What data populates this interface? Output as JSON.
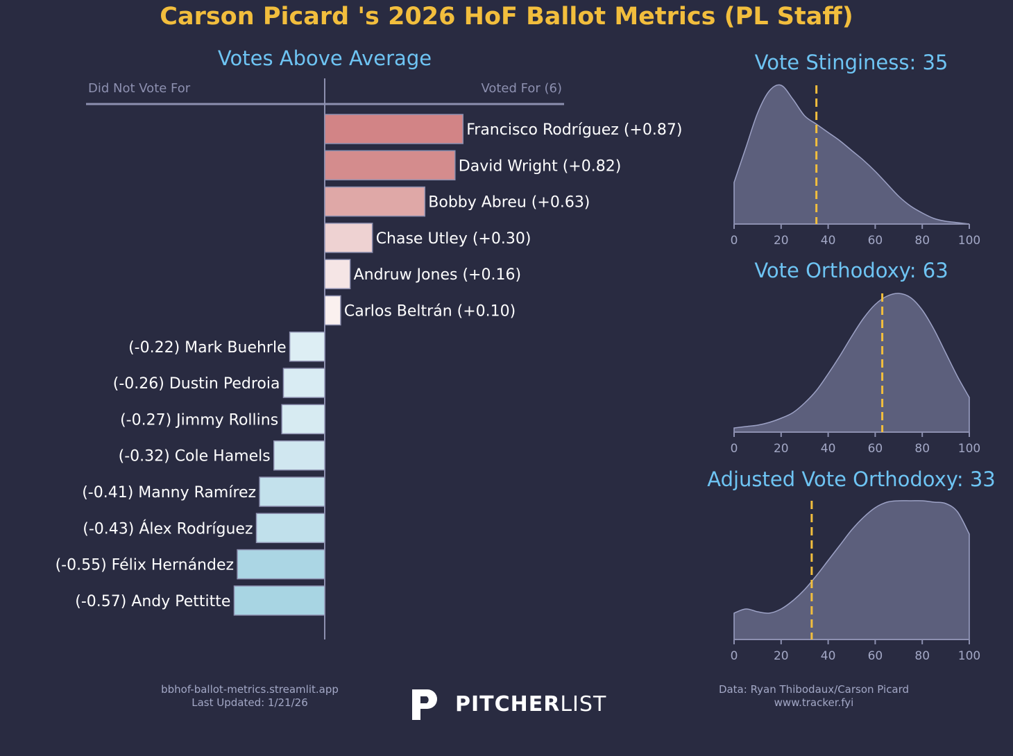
{
  "title": "Carson Picard 's 2026 HoF Ballot Metrics (PL Staff)",
  "colors": {
    "background": "#292b41",
    "title": "#f2be3d",
    "subtitle": "#6ec4f3",
    "axis": "#8d90b0",
    "density_fill": "#5c5f7c",
    "density_stroke": "#9da2c6",
    "marker": "#f2be3d"
  },
  "chart_data": [
    {
      "type": "bar",
      "orientation": "horizontal-diverging",
      "title": "Votes Above Average",
      "left_label": "Did Not Vote For",
      "right_label": "Voted For (6)",
      "bars": [
        {
          "name": "Francisco Rodríguez",
          "value": 0.87,
          "label": "Francisco Rodríguez (+0.87)",
          "color": "#d28486"
        },
        {
          "name": "David Wright",
          "value": 0.82,
          "label": "David Wright (+0.82)",
          "color": "#d48c8d"
        },
        {
          "name": "Bobby Abreu",
          "value": 0.63,
          "label": "Bobby Abreu (+0.63)",
          "color": "#dfa8a7"
        },
        {
          "name": "Chase Utley",
          "value": 0.3,
          "label": "Chase Utley (+0.30)",
          "color": "#eed2d2"
        },
        {
          "name": "Andruw Jones",
          "value": 0.16,
          "label": "Andruw Jones (+0.16)",
          "color": "#f5e5e5"
        },
        {
          "name": "Carlos Beltrán",
          "value": 0.1,
          "label": "Carlos Beltrán (+0.10)",
          "color": "#faf0ef"
        },
        {
          "name": "Mark Buehrle",
          "value": -0.22,
          "label": "(-0.22) Mark Buehrle",
          "color": "#ddeef4"
        },
        {
          "name": "Dustin Pedroia",
          "value": -0.26,
          "label": "(-0.26) Dustin Pedroia",
          "color": "#d9ecf3"
        },
        {
          "name": "Jimmy Rollins",
          "value": -0.27,
          "label": "(-0.27) Jimmy Rollins",
          "color": "#d7ebf2"
        },
        {
          "name": "Cole Hamels",
          "value": -0.32,
          "label": "(-0.32) Cole Hamels",
          "color": "#d0e7f0"
        },
        {
          "name": "Manny Ramírez",
          "value": -0.41,
          "label": "(-0.41) Manny Ramírez",
          "color": "#c3e1ec"
        },
        {
          "name": "Álex Rodríguez",
          "value": -0.43,
          "label": "(-0.43) Álex Rodríguez",
          "color": "#c0e0eb"
        },
        {
          "name": "Félix Hernández",
          "value": -0.55,
          "label": "(-0.55) Félix Hernández",
          "color": "#abd6e4"
        },
        {
          "name": "Andy Pettitte",
          "value": -0.57,
          "label": "(-0.57) Andy Pettitte",
          "color": "#a8d5e3"
        }
      ]
    },
    {
      "type": "area",
      "title": "Vote Stinginess: 35",
      "marker": 35,
      "xlim": [
        0,
        100
      ],
      "xticks": [
        "0",
        "20",
        "40",
        "60",
        "80",
        "100"
      ],
      "x": [
        0,
        5,
        10,
        15,
        20,
        25,
        30,
        35,
        40,
        45,
        50,
        55,
        60,
        65,
        70,
        75,
        80,
        85,
        90,
        95,
        100
      ],
      "density": [
        0.3,
        0.55,
        0.8,
        0.96,
        1.0,
        0.9,
        0.78,
        0.72,
        0.66,
        0.6,
        0.53,
        0.46,
        0.38,
        0.29,
        0.2,
        0.13,
        0.08,
        0.04,
        0.02,
        0.01,
        0.0
      ]
    },
    {
      "type": "area",
      "title": "Vote Orthodoxy: 63",
      "marker": 63,
      "xlim": [
        0,
        100
      ],
      "xticks": [
        "0",
        "20",
        "40",
        "60",
        "80",
        "100"
      ],
      "x": [
        0,
        5,
        10,
        15,
        20,
        25,
        30,
        35,
        40,
        45,
        50,
        55,
        60,
        65,
        70,
        75,
        80,
        85,
        90,
        95,
        100
      ],
      "density": [
        0.03,
        0.04,
        0.05,
        0.07,
        0.1,
        0.14,
        0.21,
        0.3,
        0.42,
        0.55,
        0.69,
        0.82,
        0.92,
        0.98,
        1.0,
        0.97,
        0.88,
        0.74,
        0.57,
        0.4,
        0.25
      ]
    },
    {
      "type": "area",
      "title": "Adjusted Vote Orthodoxy: 33",
      "marker": 33,
      "xlim": [
        0,
        100
      ],
      "xticks": [
        "0",
        "20",
        "40",
        "60",
        "80",
        "100"
      ],
      "x": [
        0,
        5,
        10,
        15,
        20,
        25,
        30,
        35,
        40,
        45,
        50,
        55,
        60,
        65,
        70,
        75,
        80,
        85,
        90,
        95,
        100
      ],
      "density": [
        0.19,
        0.22,
        0.2,
        0.19,
        0.22,
        0.28,
        0.36,
        0.46,
        0.57,
        0.68,
        0.79,
        0.88,
        0.95,
        0.99,
        1.0,
        1.0,
        1.0,
        0.99,
        0.98,
        0.92,
        0.76
      ]
    }
  ],
  "footer": {
    "left_line1": "bbhof-ballot-metrics.streamlit.app",
    "left_line2": "Last Updated: 1/21/26",
    "brand_bold": "PITCHER",
    "brand_light": "LIST",
    "right_line1": "Data: Ryan Thibodaux/Carson Picard",
    "right_line2": "www.tracker.fyi"
  }
}
